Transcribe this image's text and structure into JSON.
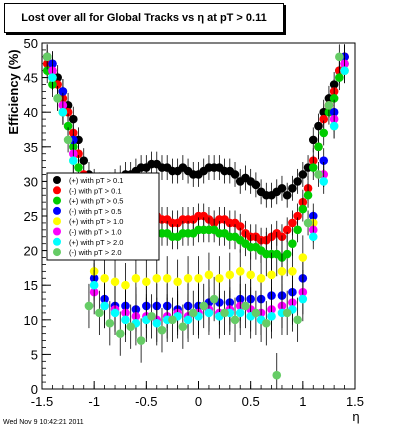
{
  "chart_data": {
    "type": "scatter",
    "title": "Lost over all for Global Tracks vs   η at pT > 0.11",
    "xlabel": "η",
    "ylabel": "Efficiency (%)",
    "xlim": [
      -1.5,
      1.5
    ],
    "ylim": [
      0,
      50
    ],
    "x_ticks": [
      "-1.5",
      "-1",
      "-0.5",
      "0",
      "0.5",
      "1",
      "1.5"
    ],
    "y_ticks": [
      "0",
      "5",
      "10",
      "15",
      "20",
      "25",
      "30",
      "35",
      "40",
      "45",
      "50"
    ],
    "grid": false,
    "legend_position": "middle-left",
    "series": [
      {
        "name": "(+) with pT > 0.1",
        "color": "#000000",
        "x": [
          -1.45,
          -1.4,
          -1.35,
          -1.3,
          -1.25,
          -1.2,
          -1.15,
          -1.1,
          -1.05,
          -1.0,
          -0.95,
          -0.9,
          -0.85,
          -0.8,
          -0.75,
          -0.7,
          -0.65,
          -0.6,
          -0.55,
          -0.5,
          -0.45,
          -0.4,
          -0.35,
          -0.3,
          -0.25,
          -0.2,
          -0.15,
          -0.1,
          -0.05,
          0.0,
          0.05,
          0.1,
          0.15,
          0.2,
          0.25,
          0.3,
          0.35,
          0.4,
          0.45,
          0.5,
          0.55,
          0.6,
          0.65,
          0.7,
          0.75,
          0.8,
          0.85,
          0.9,
          0.95,
          1.0,
          1.05,
          1.1,
          1.15,
          1.2,
          1.25,
          1.3,
          1.35,
          1.4
        ],
        "y": [
          48,
          47,
          45,
          43,
          41,
          39,
          36,
          33,
          31,
          30,
          29.5,
          29,
          29.5,
          30,
          30.5,
          31,
          31,
          31.5,
          32,
          32,
          32.5,
          32.5,
          32,
          32,
          31.5,
          31.5,
          32,
          31.5,
          31,
          31,
          31.5,
          32,
          32,
          32,
          31.5,
          31.5,
          31,
          30,
          30.5,
          30,
          29.5,
          28.5,
          28,
          28,
          28.5,
          29,
          28,
          29,
          30,
          31,
          32,
          36,
          38,
          40,
          42,
          44,
          46,
          48
        ]
      },
      {
        "name": "(-) with pT > 0.1",
        "color": "#ff0000",
        "x": [
          -1.45,
          -1.4,
          -1.35,
          -1.3,
          -1.25,
          -1.2,
          -1.15,
          -1.1,
          -1.05,
          -1.0,
          -0.95,
          -0.9,
          -0.85,
          -0.8,
          -0.75,
          -0.7,
          -0.65,
          -0.6,
          -0.55,
          -0.5,
          -0.45,
          -0.4,
          -0.35,
          -0.3,
          -0.25,
          -0.2,
          -0.15,
          -0.1,
          -0.05,
          0.0,
          0.05,
          0.1,
          0.15,
          0.2,
          0.25,
          0.3,
          0.35,
          0.4,
          0.45,
          0.5,
          0.55,
          0.6,
          0.65,
          0.7,
          0.75,
          0.8,
          0.85,
          0.9,
          0.95,
          1.0,
          1.05,
          1.1,
          1.15,
          1.2,
          1.25,
          1.3,
          1.35,
          1.4
        ],
        "y": [
          47,
          46,
          44,
          42,
          40,
          37,
          34,
          31,
          28,
          27,
          26.5,
          26,
          25.5,
          25,
          25,
          24.5,
          25,
          25,
          25,
          25,
          25,
          25,
          24.5,
          24.5,
          24,
          24,
          24.5,
          24.5,
          24.5,
          25,
          25,
          24.5,
          24,
          24.5,
          24.5,
          24,
          24,
          23.5,
          22.5,
          22,
          22,
          21.5,
          21.5,
          22,
          22.5,
          22,
          23,
          24,
          25,
          27,
          29,
          33,
          35,
          39,
          41,
          43,
          46,
          48
        ]
      },
      {
        "name": "(+) with pT > 0.5",
        "color": "#00cc00",
        "x": [
          -1.45,
          -1.4,
          -1.35,
          -1.3,
          -1.25,
          -1.2,
          -1.15,
          -1.1,
          -1.05,
          -1.0,
          -0.95,
          -0.9,
          -0.85,
          -0.8,
          -0.75,
          -0.7,
          -0.65,
          -0.6,
          -0.55,
          -0.5,
          -0.45,
          -0.4,
          -0.35,
          -0.3,
          -0.25,
          -0.2,
          -0.15,
          -0.1,
          -0.05,
          0.0,
          0.05,
          0.1,
          0.15,
          0.2,
          0.25,
          0.3,
          0.35,
          0.4,
          0.45,
          0.5,
          0.55,
          0.6,
          0.65,
          0.7,
          0.75,
          0.8,
          0.85,
          0.9,
          0.95,
          1.0,
          1.05,
          1.1,
          1.15,
          1.2,
          1.25,
          1.3,
          1.35,
          1.4
        ],
        "y": [
          46,
          44,
          42,
          40,
          38,
          35,
          32,
          29,
          27,
          25.5,
          25,
          24.5,
          24,
          24,
          23.5,
          23.5,
          23,
          23,
          23,
          22.5,
          22.5,
          22.5,
          22.5,
          22.5,
          22,
          22,
          22.5,
          22.5,
          22.5,
          23,
          23,
          23,
          23,
          22.5,
          22.5,
          22,
          22,
          21.5,
          21,
          20.5,
          20.5,
          20,
          19.5,
          19.5,
          19.5,
          19,
          19.5,
          21,
          23,
          26,
          28,
          32,
          35,
          37,
          40,
          42,
          45,
          47
        ]
      },
      {
        "name": "(-) with pT > 0.5",
        "color": "#0000ff",
        "x": [
          -1.4,
          -1.3,
          -1.2,
          -1.1,
          -1.0,
          -0.9,
          -0.8,
          -0.7,
          -0.6,
          -0.5,
          -0.4,
          -0.3,
          -0.2,
          -0.1,
          0.0,
          0.1,
          0.2,
          0.3,
          0.4,
          0.5,
          0.6,
          0.7,
          0.8,
          0.9,
          1.0,
          1.1,
          1.2,
          1.3,
          1.4
        ],
        "y": [
          47,
          43,
          36,
          24,
          16,
          13,
          12,
          12,
          11.5,
          12,
          12,
          12,
          11.5,
          12,
          12,
          12.5,
          12.5,
          12.5,
          13,
          13,
          13,
          13.5,
          13.5,
          14,
          16,
          25,
          33,
          40,
          48
        ]
      },
      {
        "name": "(+) with pT > 1.0",
        "color": "#ffff00",
        "x": [
          -1.4,
          -1.3,
          -1.2,
          -1.1,
          -1.0,
          -0.9,
          -0.8,
          -0.7,
          -0.6,
          -0.5,
          -0.4,
          -0.3,
          -0.2,
          -0.1,
          0.0,
          0.1,
          0.2,
          0.3,
          0.4,
          0.5,
          0.6,
          0.7,
          0.8,
          0.9,
          1.0,
          1.1,
          1.2,
          1.3,
          1.4
        ],
        "y": [
          45,
          40,
          33,
          23,
          17,
          16,
          15.5,
          15,
          16,
          15.5,
          16,
          16,
          15.5,
          16,
          16,
          16.5,
          16,
          16.5,
          17,
          16.5,
          16,
          16.5,
          17,
          17,
          19,
          24,
          31,
          38,
          46
        ]
      },
      {
        "name": "(-) with pT > 1.0",
        "color": "#ff00ff",
        "x": [
          -1.4,
          -1.3,
          -1.2,
          -1.1,
          -1.0,
          -0.9,
          -0.8,
          -0.7,
          -0.6,
          -0.5,
          -0.4,
          -0.3,
          -0.2,
          -0.1,
          0.0,
          0.1,
          0.2,
          0.3,
          0.4,
          0.5,
          0.6,
          0.7,
          0.8,
          0.9,
          1.0,
          1.1,
          1.2,
          1.3,
          1.4
        ],
        "y": [
          46,
          41,
          34,
          22,
          14,
          12,
          11.5,
          11,
          10.5,
          10.5,
          10,
          10.5,
          11,
          10.5,
          11,
          11.5,
          11,
          11.5,
          12,
          11.5,
          11,
          11.5,
          12,
          12.5,
          14,
          23,
          31,
          39,
          47
        ]
      },
      {
        "name": "(+) with pT > 2.0",
        "color": "#00ffff",
        "x": [
          -1.4,
          -1.3,
          -1.2,
          -1.1,
          -1.0,
          -0.9,
          -0.8,
          -0.7,
          -0.6,
          -0.5,
          -0.4,
          -0.3,
          -0.2,
          -0.1,
          0.0,
          0.1,
          0.2,
          0.3,
          0.4,
          0.5,
          0.6,
          0.7,
          0.8,
          0.9,
          1.0,
          1.1,
          1.2,
          1.3,
          1.4
        ],
        "y": [
          45,
          40,
          33,
          22,
          15,
          12,
          11,
          10,
          9.5,
          10,
          9.5,
          10,
          10.5,
          10,
          10.5,
          11,
          10.5,
          11,
          11,
          10.5,
          10,
          10.5,
          11,
          11.5,
          13,
          22,
          30,
          38,
          46
        ]
      },
      {
        "name": "(-) with pT > 2.0",
        "color": "#66cc66",
        "x": [
          -1.45,
          -1.35,
          -1.25,
          -1.15,
          -1.05,
          -0.95,
          -0.85,
          -0.75,
          -0.65,
          -0.55,
          -0.45,
          -0.35,
          -0.25,
          -0.15,
          -0.05,
          0.05,
          0.15,
          0.25,
          0.35,
          0.45,
          0.55,
          0.65,
          0.75,
          0.85,
          0.95,
          1.05,
          1.15,
          1.25,
          1.35
        ],
        "y": [
          48,
          42,
          36,
          24,
          12,
          11,
          9.5,
          8,
          9,
          7,
          10.5,
          8.5,
          10,
          9,
          11,
          12,
          13,
          11,
          10,
          12,
          11,
          9.5,
          2,
          11,
          10,
          24,
          31,
          41,
          48
        ]
      }
    ]
  },
  "footer": {
    "timestamp": "Wed Nov  9 10:42:21 2011"
  }
}
